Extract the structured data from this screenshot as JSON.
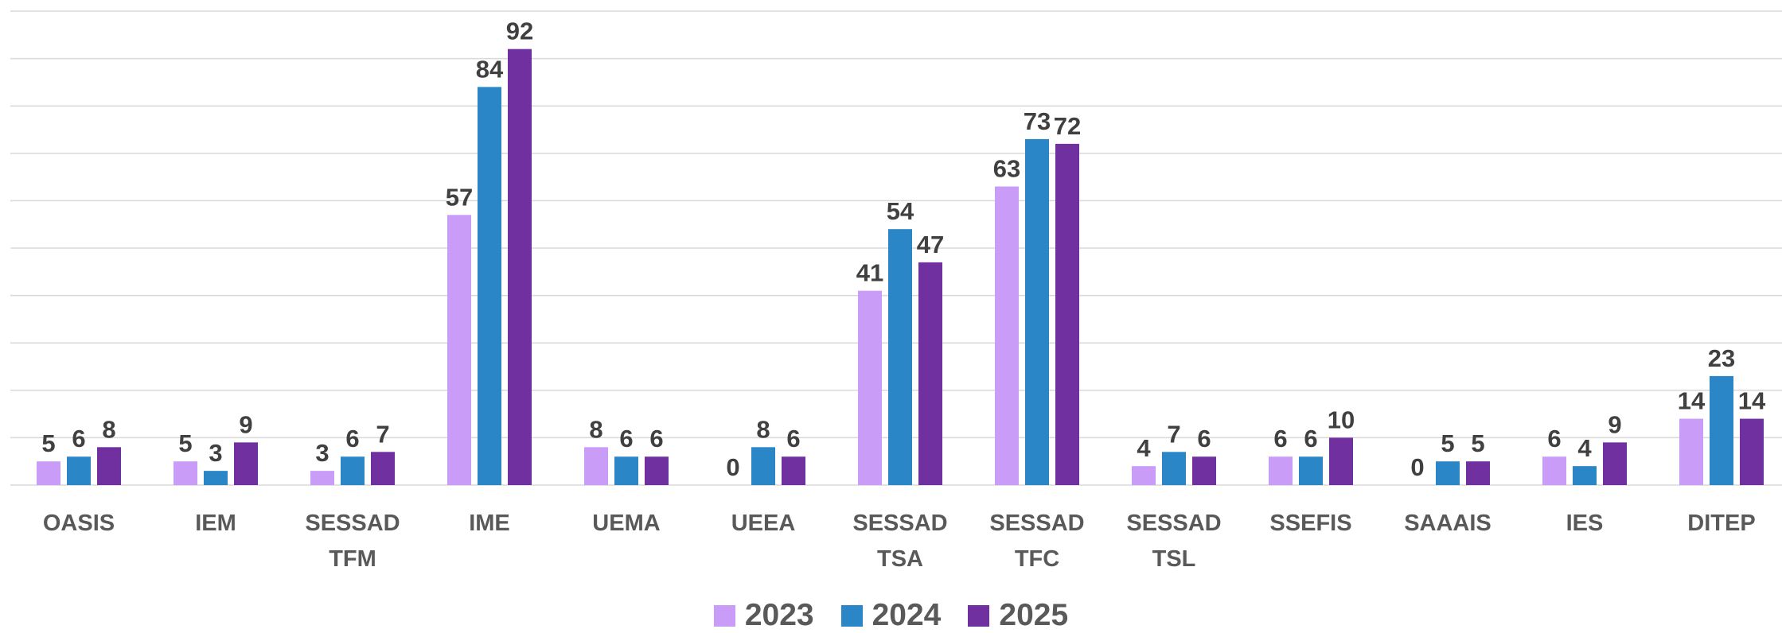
{
  "chart_data": {
    "type": "bar",
    "categories": [
      "OASIS",
      "IEM",
      "SESSAD TFM",
      "IME",
      "UEMA",
      "UEEA",
      "SESSAD TSA",
      "SESSAD TFC",
      "SESSAD TSL",
      "SSEFIS",
      "SAAAIS",
      "IES",
      "DITEP"
    ],
    "series": [
      {
        "name": "2023",
        "color": "#c99cf8",
        "values": [
          5,
          5,
          3,
          57,
          8,
          0,
          41,
          63,
          4,
          6,
          0,
          6,
          14
        ]
      },
      {
        "name": "2024",
        "color": "#2b86c8",
        "values": [
          6,
          3,
          6,
          84,
          6,
          8,
          54,
          73,
          7,
          6,
          5,
          4,
          23
        ]
      },
      {
        "name": "2025",
        "color": "#7030a0",
        "values": [
          8,
          9,
          7,
          92,
          6,
          6,
          47,
          72,
          6,
          10,
          5,
          9,
          14
        ]
      }
    ],
    "ylim": [
      0,
      100
    ],
    "yticks": [
      0,
      10,
      20,
      30,
      40,
      50,
      60,
      70,
      80,
      90,
      100
    ],
    "grid": true,
    "legend": "bottom"
  }
}
